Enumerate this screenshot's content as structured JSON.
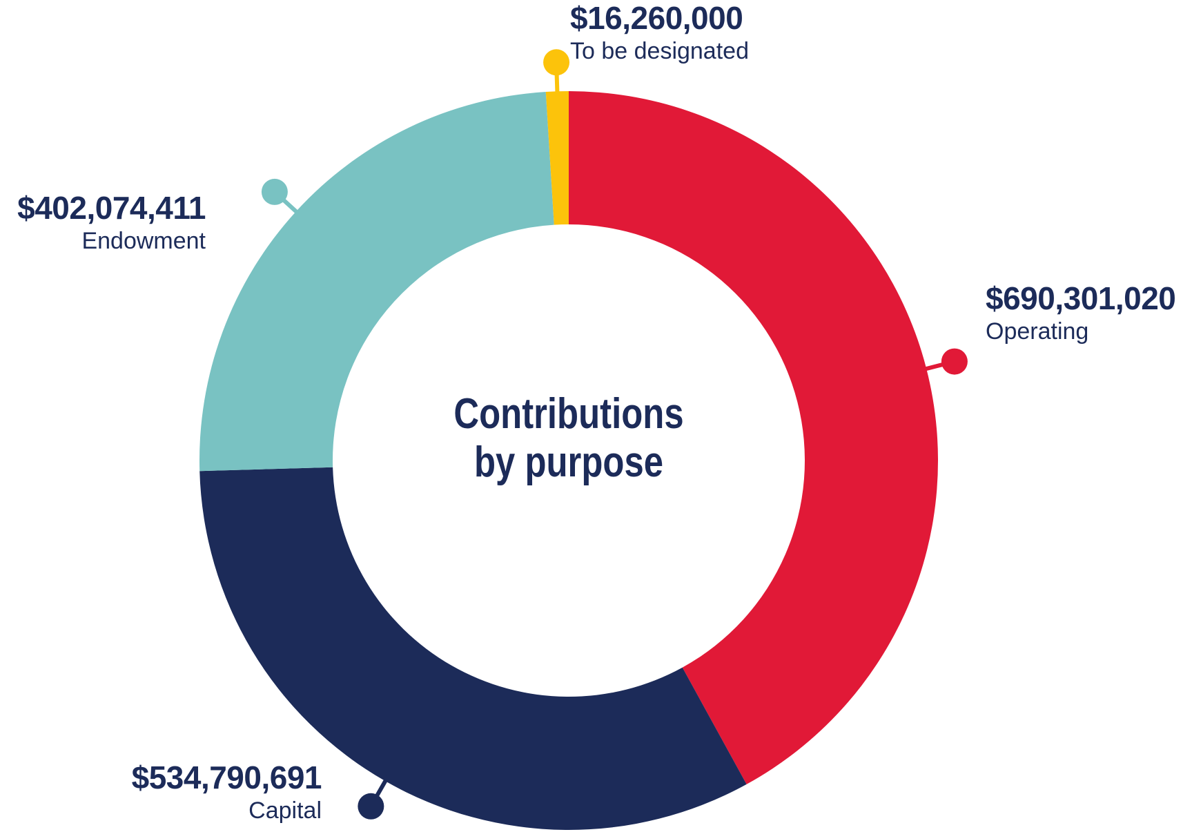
{
  "chart_data": {
    "type": "pie",
    "variant": "donut",
    "title": "Contributions by purpose",
    "title_lines": [
      "Contributions",
      "by purpose"
    ],
    "unit": "USD",
    "start": "top",
    "direction": "clockwise",
    "slices": [
      {
        "name": "Operating",
        "value": 690301020,
        "label": "$690,301,020",
        "color": "#e11937"
      },
      {
        "name": "Capital",
        "value": 534790691,
        "label": "$534,790,691",
        "color": "#1c2b59"
      },
      {
        "name": "Endowment",
        "value": 402074411,
        "label": "$402,074,411",
        "color": "#79c2c2"
      },
      {
        "name": "To be designated",
        "value": 16260000,
        "label": "$16,260,000",
        "color": "#fcc30b"
      }
    ]
  }
}
